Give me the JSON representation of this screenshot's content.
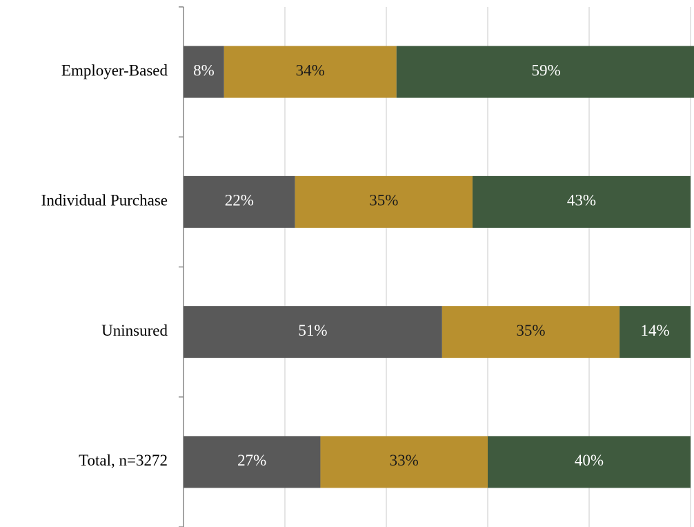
{
  "chart_data": {
    "type": "stacked-barh",
    "categories": [
      "Employer-Based",
      "Individual Purchase",
      "Uninsured",
      "Total, n=3272"
    ],
    "series": [
      {
        "color": "#595959",
        "values": [
          8,
          22,
          51,
          27
        ],
        "value_labels": [
          "8%",
          "22%",
          "51%",
          "27%"
        ]
      },
      {
        "color": "#b8902f",
        "values": [
          34,
          35,
          35,
          33
        ],
        "value_labels": [
          "34%",
          "35%",
          "35%",
          "33%"
        ]
      },
      {
        "color": "#3f5a3e",
        "values": [
          59,
          43,
          14,
          40
        ],
        "value_labels": [
          "59%",
          "43%",
          "14%",
          "40%"
        ]
      }
    ],
    "xlim": [
      0,
      100
    ],
    "xticks": [
      0,
      20,
      40,
      60,
      80,
      100
    ],
    "grid": true
  }
}
